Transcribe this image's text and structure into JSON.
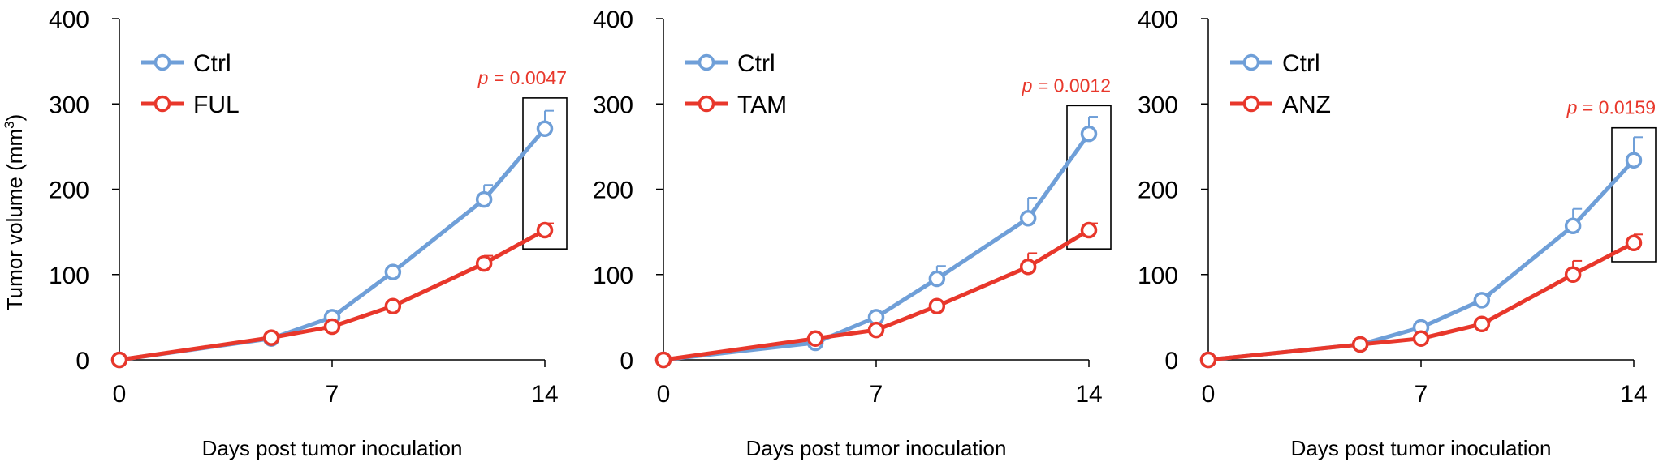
{
  "figure": {
    "ylabel_main": "Tumor volume (mm",
    "ylabel_sup": "3",
    "ylabel_close": ")"
  },
  "chart_data": [
    {
      "type": "line",
      "xlabel": "Days post tumor inoculation",
      "ylabel": "Tumor volume (mm3)",
      "xlim": [
        0,
        14
      ],
      "ylim": [
        0,
        400
      ],
      "xticks": [
        "0",
        "7",
        "14"
      ],
      "yticks": [
        "0",
        "100",
        "200",
        "300",
        "400"
      ],
      "legend_position": "top-left",
      "annotation": {
        "prefix": "p",
        "text": " = 0.0047",
        "x": 14,
        "box_ylim": [
          130,
          307
        ]
      },
      "series": [
        {
          "name": "Ctrl",
          "color": "#6f9fd8",
          "x": [
            0,
            5,
            7,
            9,
            12,
            14
          ],
          "y": [
            0,
            25,
            50,
            103,
            188,
            271
          ],
          "err": [
            0,
            2,
            5,
            7,
            17,
            21
          ]
        },
        {
          "name": "FUL",
          "color": "#e8372b",
          "x": [
            0,
            5,
            7,
            9,
            12,
            14
          ],
          "y": [
            0,
            26,
            39,
            63,
            113,
            152
          ],
          "err": [
            0,
            2,
            3,
            3,
            9,
            8
          ]
        }
      ]
    },
    {
      "type": "line",
      "xlabel": "Days post tumor inoculation",
      "ylabel": "Tumor volume (mm3)",
      "xlim": [
        0,
        14
      ],
      "ylim": [
        0,
        400
      ],
      "xticks": [
        "0",
        "7",
        "14"
      ],
      "yticks": [
        "0",
        "100",
        "200",
        "300",
        "400"
      ],
      "legend_position": "top-left",
      "annotation": {
        "prefix": "p",
        "text": " = 0.0012",
        "x": 14,
        "box_ylim": [
          130,
          298
        ]
      },
      "series": [
        {
          "name": "Ctrl",
          "color": "#6f9fd8",
          "x": [
            0,
            5,
            7,
            9,
            12,
            14
          ],
          "y": [
            0,
            20,
            50,
            95,
            166,
            265
          ],
          "err": [
            0,
            2,
            5,
            15,
            24,
            20
          ]
        },
        {
          "name": "TAM",
          "color": "#e8372b",
          "x": [
            0,
            5,
            7,
            9,
            12,
            14
          ],
          "y": [
            0,
            25,
            35,
            63,
            109,
            152
          ],
          "err": [
            0,
            2,
            3,
            3,
            16,
            8
          ]
        }
      ]
    },
    {
      "type": "line",
      "xlabel": "Days post tumor inoculation",
      "ylabel": "Tumor volume (mm3)",
      "xlim": [
        0,
        14
      ],
      "ylim": [
        0,
        400
      ],
      "xticks": [
        "0",
        "7",
        "14"
      ],
      "yticks": [
        "0",
        "100",
        "200",
        "300",
        "400"
      ],
      "legend_position": "top-left",
      "annotation": {
        "prefix": "p",
        "text": " = 0.0159",
        "x": 14,
        "box_ylim": [
          115,
          272
        ]
      },
      "series": [
        {
          "name": "Ctrl",
          "color": "#6f9fd8",
          "x": [
            0,
            5,
            7,
            9,
            12,
            14
          ],
          "y": [
            0,
            18,
            38,
            70,
            157,
            234
          ],
          "err": [
            0,
            2,
            4,
            5,
            20,
            27
          ]
        },
        {
          "name": "ANZ",
          "color": "#e8372b",
          "x": [
            0,
            5,
            7,
            9,
            12,
            14
          ],
          "y": [
            0,
            18,
            25,
            42,
            100,
            137
          ],
          "err": [
            0,
            2,
            3,
            3,
            16,
            10
          ]
        }
      ]
    }
  ]
}
